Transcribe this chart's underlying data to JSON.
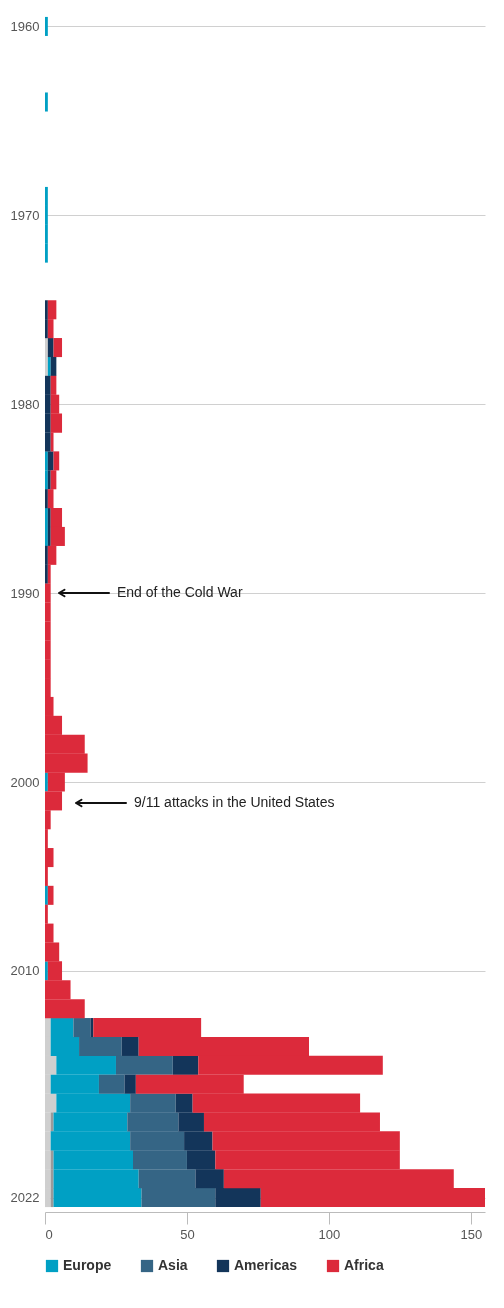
{
  "chart_data": {
    "type": "bar",
    "orientation": "horizontal",
    "stacked": true,
    "x": [
      1960,
      1961,
      1962,
      1963,
      1964,
      1965,
      1966,
      1967,
      1968,
      1969,
      1970,
      1971,
      1972,
      1973,
      1974,
      1975,
      1976,
      1977,
      1978,
      1979,
      1980,
      1981,
      1982,
      1983,
      1984,
      1985,
      1986,
      1987,
      1988,
      1989,
      1990,
      1991,
      1992,
      1993,
      1994,
      1995,
      1996,
      1997,
      1998,
      1999,
      2000,
      2001,
      2002,
      2003,
      2004,
      2005,
      2006,
      2007,
      2008,
      2009,
      2010,
      2011,
      2012,
      2013,
      2014,
      2015,
      2016,
      2017,
      2018,
      2019,
      2020,
      2021,
      2022
    ],
    "xlim": [
      0,
      155
    ],
    "xticks": [
      0,
      50,
      100,
      150
    ],
    "ylim": [
      2022.5,
      1959.5
    ],
    "yticks": [
      1960,
      1970,
      1980,
      1990,
      2000,
      2010,
      2022
    ],
    "grid": "y",
    "legend": "bottom",
    "annotations": [
      "End of the Cold War",
      "9/11 attacks in the United States"
    ],
    "series": [
      {
        "color": "#cfcfcf",
        "values": [
          0,
          0,
          0,
          0,
          0,
          0,
          0,
          0,
          0,
          0,
          0,
          0,
          0,
          0,
          0,
          0,
          0,
          1,
          1,
          0,
          0,
          0,
          0,
          0,
          0,
          0,
          0,
          0,
          0,
          0,
          0,
          0,
          0,
          0,
          0,
          0,
          0,
          0,
          0,
          0,
          0,
          0,
          0,
          0,
          0,
          0,
          0,
          0,
          0,
          0,
          0,
          0,
          0,
          2,
          2,
          4,
          2,
          4,
          2,
          2,
          2,
          2,
          2
        ]
      },
      {
        "color": "#9a9a9a",
        "values": [
          0,
          0,
          0,
          0,
          0,
          0,
          0,
          0,
          0,
          0,
          0,
          0,
          0,
          0,
          0,
          0,
          0,
          0,
          0,
          0,
          0,
          0,
          0,
          0,
          0,
          0,
          0,
          0,
          0,
          0,
          0,
          0,
          0,
          0,
          0,
          0,
          0,
          0,
          0,
          0,
          0,
          0,
          0,
          0,
          0,
          0,
          0,
          0,
          0,
          0,
          0,
          0,
          0,
          0,
          0,
          0,
          0,
          0,
          1,
          0,
          1,
          1,
          1
        ]
      },
      {
        "name": "Europe",
        "color": "#00a0c4",
        "values": [
          1,
          0,
          0,
          0,
          1,
          0,
          0,
          0,
          0,
          1,
          1,
          1,
          1,
          0,
          0,
          0,
          0,
          0,
          1,
          0,
          0,
          0,
          0,
          1,
          1,
          0,
          1,
          1,
          0,
          0,
          0,
          0,
          0,
          0,
          0,
          0,
          0,
          0,
          0,
          0,
          1,
          0,
          0,
          0,
          0,
          0,
          1,
          0,
          0,
          0,
          1,
          0,
          0,
          8,
          10,
          21,
          17,
          26,
          26,
          28,
          28,
          30,
          31
        ]
      },
      {
        "name": "Asia",
        "color": "#356585",
        "values": [
          0,
          0,
          0,
          0,
          0,
          0,
          0,
          0,
          0,
          0,
          0,
          0,
          0,
          0,
          0,
          0,
          0,
          0,
          0,
          0,
          0,
          0,
          0,
          0,
          0,
          0,
          0,
          0,
          0,
          0,
          0,
          0,
          0,
          0,
          0,
          0,
          0,
          0,
          0,
          0,
          0,
          0,
          0,
          0,
          0,
          0,
          0,
          0,
          0,
          0,
          0,
          0,
          0,
          6,
          15,
          20,
          9,
          16,
          18,
          19,
          19,
          20,
          26
        ]
      },
      {
        "name": "Americas",
        "color": "#13355a",
        "values": [
          0,
          0,
          0,
          0,
          0,
          0,
          0,
          0,
          0,
          0,
          0,
          0,
          0,
          0,
          0,
          1,
          1,
          2,
          2,
          2,
          2,
          2,
          2,
          2,
          1,
          1,
          1,
          1,
          1,
          1,
          0,
          0,
          0,
          0,
          0,
          0,
          0,
          0,
          0,
          0,
          0,
          0,
          0,
          0,
          0,
          0,
          0,
          0,
          0,
          0,
          0,
          0,
          0,
          1,
          6,
          9,
          4,
          6,
          9,
          10,
          10,
          10,
          16
        ]
      },
      {
        "name": "Africa",
        "color": "#dc2a3b",
        "values": [
          0,
          0,
          0,
          0,
          0,
          0,
          0,
          0,
          0,
          0,
          0,
          0,
          0,
          0,
          0,
          3,
          2,
          3,
          0,
          2,
          3,
          4,
          1,
          2,
          2,
          2,
          4,
          5,
          3,
          1,
          2,
          2,
          2,
          2,
          2,
          2,
          3,
          6,
          14,
          15,
          6,
          6,
          2,
          1,
          3,
          1,
          2,
          1,
          3,
          5,
          5,
          9,
          14,
          38,
          60,
          65,
          38,
          59,
          62,
          66,
          65,
          81,
          79
        ]
      }
    ]
  }
}
